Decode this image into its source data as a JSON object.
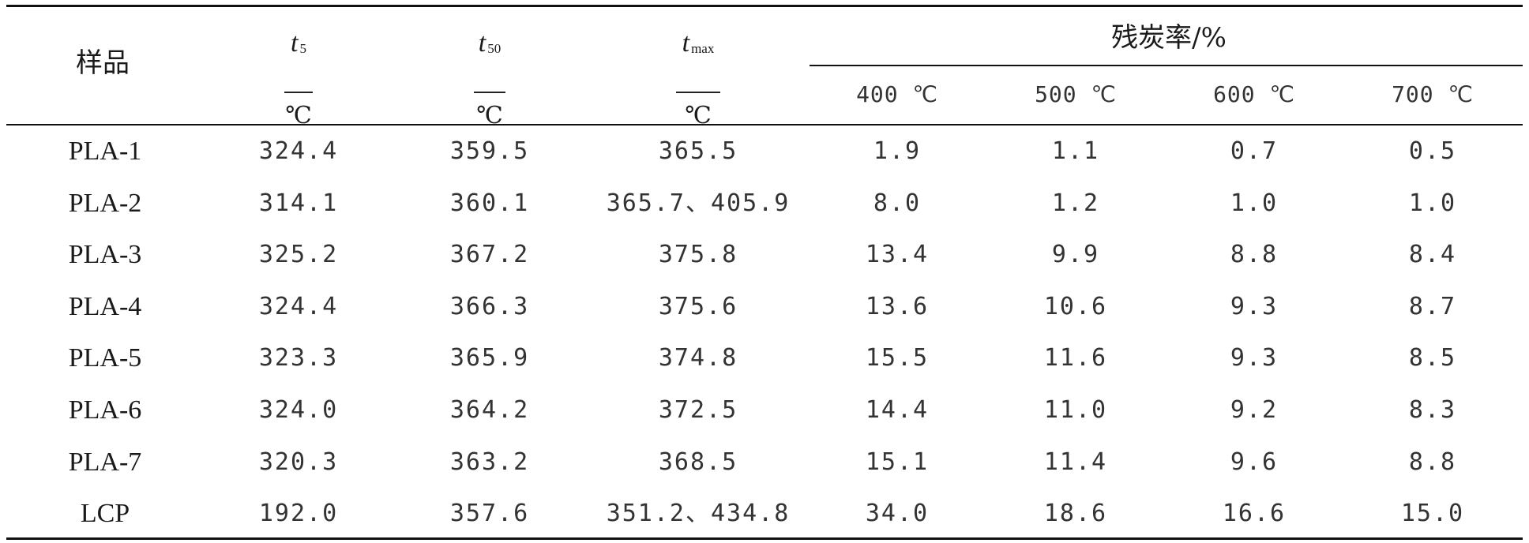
{
  "table": {
    "header": {
      "sample": "样品",
      "t5": {
        "var": "t",
        "sub": "5",
        "unit": "℃"
      },
      "t50": {
        "var": "t",
        "sub": "50",
        "unit": "℃"
      },
      "tmax": {
        "var": "t",
        "sub": "max",
        "unit": "℃"
      },
      "char_group": "残炭率/%",
      "char_temps": [
        "400 ℃",
        "500 ℃",
        "600 ℃",
        "700 ℃"
      ]
    },
    "rows": [
      {
        "name": "PLA-1",
        "t5": "324.4",
        "t50": "359.5",
        "tmax": "365.5",
        "c400": "1.9",
        "c500": "1.1",
        "c600": "0.7",
        "c700": "0.5"
      },
      {
        "name": "PLA-2",
        "t5": "314.1",
        "t50": "360.1",
        "tmax": "365.7、405.9",
        "c400": "8.0",
        "c500": "1.2",
        "c600": "1.0",
        "c700": "1.0"
      },
      {
        "name": "PLA-3",
        "t5": "325.2",
        "t50": "367.2",
        "tmax": "375.8",
        "c400": "13.4",
        "c500": "9.9",
        "c600": "8.8",
        "c700": "8.4"
      },
      {
        "name": "PLA-4",
        "t5": "324.4",
        "t50": "366.3",
        "tmax": "375.6",
        "c400": "13.6",
        "c500": "10.6",
        "c600": "9.3",
        "c700": "8.7"
      },
      {
        "name": "PLA-5",
        "t5": "323.3",
        "t50": "365.9",
        "tmax": "374.8",
        "c400": "15.5",
        "c500": "11.6",
        "c600": "9.3",
        "c700": "8.5"
      },
      {
        "name": "PLA-6",
        "t5": "324.0",
        "t50": "364.2",
        "tmax": "372.5",
        "c400": "14.4",
        "c500": "11.0",
        "c600": "9.2",
        "c700": "8.3"
      },
      {
        "name": "PLA-7",
        "t5": "320.3",
        "t50": "363.2",
        "tmax": "368.5",
        "c400": "15.1",
        "c500": "11.4",
        "c600": "9.6",
        "c700": "8.8"
      },
      {
        "name": "LCP",
        "t5": "192.0",
        "t50": "357.6",
        "tmax": "351.2、434.8",
        "c400": "34.0",
        "c500": "18.6",
        "c600": "16.6",
        "c700": "15.0"
      }
    ]
  }
}
